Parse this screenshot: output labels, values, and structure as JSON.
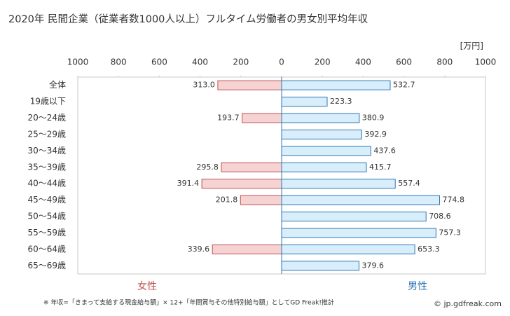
{
  "chart_data": {
    "type": "butterfly-bar",
    "title": "2020年 民間企業（従業者数1000人以上）フルタイム労働者の男女別平均年収",
    "unit_label": "[万円]",
    "categories": [
      "全体",
      "19歳以下",
      "20〜24歳",
      "25〜29歳",
      "30〜34歳",
      "35〜39歳",
      "40〜44歳",
      "45〜49歳",
      "50〜54歳",
      "55〜59歳",
      "60〜64歳",
      "65〜69歳"
    ],
    "series": [
      {
        "name": "女性",
        "side": "left",
        "color": "#f5d3d3",
        "edge": "#c0504d",
        "values": [
          313.0,
          null,
          193.7,
          null,
          null,
          295.8,
          391.4,
          201.8,
          null,
          null,
          339.6,
          null
        ],
        "value_labels": [
          "313.0",
          null,
          "193.7",
          null,
          null,
          "295.8",
          "391.4",
          "201.8",
          null,
          null,
          "339.6",
          null
        ]
      },
      {
        "name": "男性",
        "side": "right",
        "color": "#d8eefa",
        "edge": "#2e75b6",
        "values": [
          532.7,
          223.3,
          380.9,
          392.9,
          437.6,
          415.7,
          557.4,
          774.8,
          708.6,
          757.3,
          653.3,
          379.6
        ],
        "value_labels": [
          "532.7",
          "223.3",
          "380.9",
          "392.9",
          "437.6",
          "415.7",
          "557.4",
          "774.8",
          "708.6",
          "757.3",
          "653.3",
          "379.6"
        ]
      }
    ],
    "xlim": [
      0,
      1000
    ],
    "xticks_left": [
      1000,
      800,
      600,
      400,
      200
    ],
    "xticks_right": [
      0,
      200,
      400,
      600,
      800,
      1000
    ],
    "footnote": "※ 年収=「きまって支給する現金給与額」× 12+「年間賞与その他特別給与額」としてGD Freak!推計",
    "source": "© jp.gdfreak.com"
  }
}
